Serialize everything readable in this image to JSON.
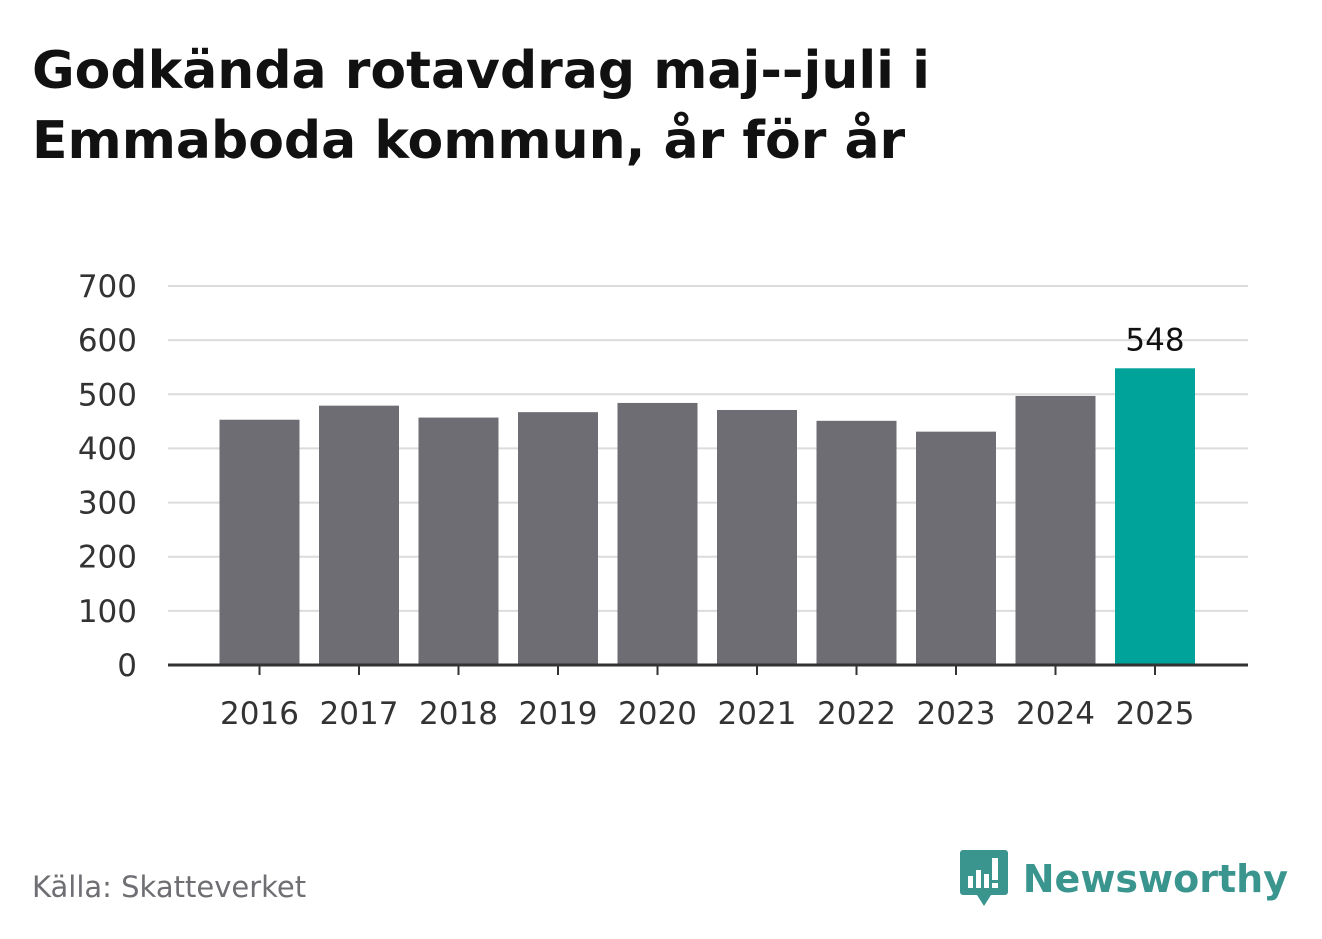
{
  "header": {
    "title": "Godkända rotavdrag maj--juli i Emmaboda kommun, år för år"
  },
  "footer": {
    "source": "Källa: Skatteverket",
    "brand": "Newsworthy",
    "brand_icon": "newsworthy-logo-icon",
    "brand_color": "#3a958f"
  },
  "chart_data": {
    "type": "bar",
    "title": "Godkända rotavdrag maj--juli i Emmaboda kommun, år för år",
    "xlabel": "",
    "ylabel": "",
    "categories": [
      "2016",
      "2017",
      "2018",
      "2019",
      "2020",
      "2021",
      "2022",
      "2023",
      "2024",
      "2025"
    ],
    "values": [
      453,
      479,
      457,
      467,
      484,
      471,
      451,
      431,
      497,
      548
    ],
    "ylim": [
      0,
      700
    ],
    "yticks": [
      "0",
      "100",
      "200",
      "300",
      "400",
      "500",
      "600",
      "700"
    ],
    "grid": true,
    "bar_color": "#6e6d73",
    "highlight_color": "#00a399",
    "highlight_index": 9,
    "annotations": [
      {
        "index": 9,
        "text": "548"
      }
    ]
  }
}
